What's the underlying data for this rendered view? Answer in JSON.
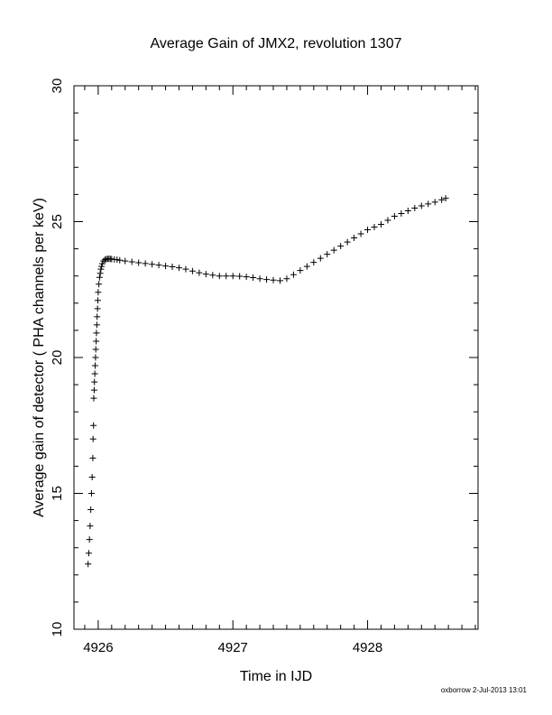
{
  "chart_data": {
    "type": "scatter",
    "title": "Average Gain of JMX2, revolution 1307",
    "xlabel": "Time in IJD",
    "ylabel": "Average gain of detector ( PHA channels per keV)",
    "xlim": [
      4925.82,
      4928.82
    ],
    "ylim": [
      10,
      30
    ],
    "xticks": [
      4926,
      4927,
      4928
    ],
    "xtick_labels": [
      "4926",
      "4927",
      "4928"
    ],
    "yticks": [
      10,
      15,
      20,
      25,
      30
    ],
    "ytick_labels": [
      "10",
      "15",
      "20",
      "25",
      "30"
    ],
    "grid": false,
    "marker": "plus",
    "series": [
      {
        "x": [
          4925.925,
          4925.93,
          4925.935,
          4925.94,
          4925.945,
          4925.95,
          4925.955,
          4925.96,
          4925.962,
          4925.965,
          4925.967,
          4925.97,
          4925.972,
          4925.975,
          4925.977,
          4925.98,
          4925.982,
          4925.985,
          4925.987,
          4925.99,
          4925.992,
          4925.995,
          4925.997,
          4926.0,
          4926.005,
          4926.01,
          4926.015,
          4926.02,
          4926.025,
          4926.03,
          4926.04,
          4926.05,
          4926.06,
          4926.07,
          4926.08,
          4926.09,
          4926.1,
          4926.12,
          4926.14,
          4926.16,
          4926.2,
          4926.25,
          4926.3,
          4926.35,
          4926.4,
          4926.45,
          4926.5,
          4926.55,
          4926.6,
          4926.65,
          4926.7,
          4926.75,
          4926.8,
          4926.85,
          4926.9,
          4926.95,
          4927.0,
          4927.05,
          4927.1,
          4927.15,
          4927.2,
          4927.25,
          4927.3,
          4927.35,
          4927.4,
          4927.45,
          4927.5,
          4927.55,
          4927.6,
          4927.65,
          4927.7,
          4927.75,
          4927.8,
          4927.85,
          4927.9,
          4927.95,
          4928.0,
          4928.05,
          4928.1,
          4928.15,
          4928.2,
          4928.25,
          4928.3,
          4928.35,
          4928.4,
          4928.45,
          4928.5,
          4928.55,
          4928.58
        ],
        "y": [
          12.4,
          12.8,
          13.3,
          13.8,
          14.4,
          15.0,
          15.6,
          16.3,
          17.0,
          17.5,
          18.5,
          18.8,
          19.1,
          19.4,
          19.7,
          20.0,
          20.3,
          20.6,
          20.9,
          21.2,
          21.5,
          21.8,
          22.1,
          22.4,
          22.7,
          22.95,
          23.1,
          23.25,
          23.35,
          23.45,
          23.55,
          23.6,
          23.62,
          23.63,
          23.63,
          23.63,
          23.62,
          23.61,
          23.6,
          23.58,
          23.55,
          23.52,
          23.49,
          23.46,
          23.43,
          23.4,
          23.37,
          23.34,
          23.3,
          23.25,
          23.18,
          23.12,
          23.07,
          23.03,
          23.0,
          23.0,
          23.0,
          22.99,
          22.97,
          22.94,
          22.9,
          22.87,
          22.85,
          22.83,
          22.9,
          23.05,
          23.2,
          23.35,
          23.5,
          23.65,
          23.8,
          23.95,
          24.1,
          24.25,
          24.4,
          24.55,
          24.7,
          24.8,
          24.9,
          25.05,
          25.2,
          25.3,
          25.4,
          25.5,
          25.58,
          25.65,
          25.72,
          25.8,
          25.86
        ]
      }
    ]
  },
  "footer": "oxborrow  2-Jul-2013 13:01"
}
